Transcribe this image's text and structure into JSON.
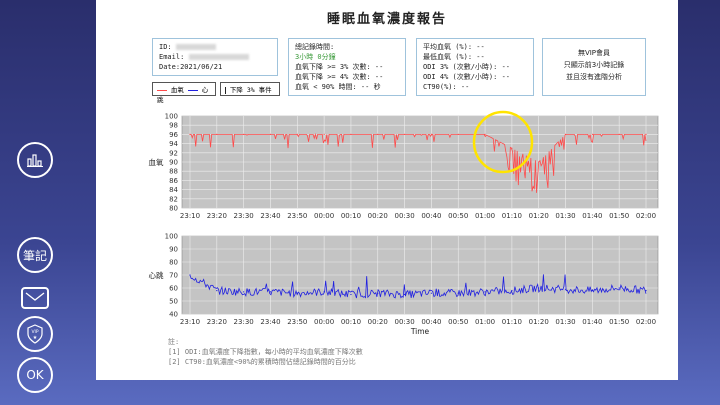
{
  "report": {
    "title": "睡眠血氧濃度報告",
    "id_label": "ID:",
    "email_label": "Email:",
    "date": "Date:2021/06/21",
    "record_time_label": "總記錄時間:",
    "record_time_value": "3小時 0分鐘",
    "drop3_label": "血氧下降 >= 3% 次數: --",
    "drop4_label": "血氧下降 >= 4% 次數: --",
    "below90_label": "血氧 < 90% 時間: -- 秒",
    "avg_label": "平均血氧 (%): --",
    "min_label": "最低血氧 (%): --",
    "odi3_label": "ODI 3% (次數/小時): --",
    "odi4_label": "ODI 4% (次數/小時): --",
    "ct90_label": "CT90(%): --",
    "vip_line1": "無VIP會員",
    "vip_line2": "只顯示前3小時記錄",
    "vip_line3": "並且沒有進階分析",
    "legend_spo2": "血氧",
    "legend_hr": "心跳",
    "legend_event": "下降 3% 事件",
    "notes_title": "註:",
    "note1": "[1] ODI:血氧濃度下降指數，每小時的平均血氧濃度下降次數",
    "note2": "[2] CT90:血氧濃度<90%的累積時間佔總記錄時間的百分比"
  },
  "sidebar": {
    "chart_icon": "bar-chart-icon",
    "notes_label": "筆記",
    "mail_icon": "envelope-icon",
    "vip_label": "VIP",
    "ok_label": "OK"
  },
  "chart_data": [
    {
      "type": "line",
      "ylabel": "血氧",
      "ylim": [
        80,
        100
      ],
      "yticks": [
        80,
        82,
        84,
        86,
        88,
        90,
        92,
        94,
        96,
        98,
        100
      ],
      "categories": [
        "23:10",
        "23:20",
        "23:30",
        "23:40",
        "23:50",
        "00:00",
        "00:10",
        "00:20",
        "00:30",
        "00:40",
        "00:50",
        "01:00",
        "01:10",
        "01:20",
        "01:30",
        "01:40",
        "01:50",
        "02:00"
      ],
      "series": [
        {
          "values": [
            96,
            96,
            96,
            96,
            96,
            96,
            96,
            96,
            96,
            96,
            96,
            96,
            93,
            90,
            96,
            96,
            96,
            96
          ]
        }
      ],
      "grid": true,
      "color": "#ff4a4a"
    },
    {
      "type": "line",
      "ylabel": "心跳",
      "xlabel": "Time",
      "ylim": [
        40,
        100
      ],
      "yticks": [
        40,
        50,
        60,
        70,
        80,
        90,
        100
      ],
      "categories": [
        "23:10",
        "23:20",
        "23:30",
        "23:40",
        "23:50",
        "00:00",
        "00:10",
        "00:20",
        "00:30",
        "00:40",
        "00:50",
        "01:00",
        "01:10",
        "01:20",
        "01:30",
        "01:40",
        "01:50",
        "02:00"
      ],
      "series": [
        {
          "values": [
            70,
            58,
            57,
            57,
            56,
            57,
            55,
            56,
            55,
            56,
            56,
            57,
            58,
            60,
            59,
            58,
            60,
            58
          ]
        }
      ],
      "grid": true,
      "color": "#2020e0"
    }
  ]
}
